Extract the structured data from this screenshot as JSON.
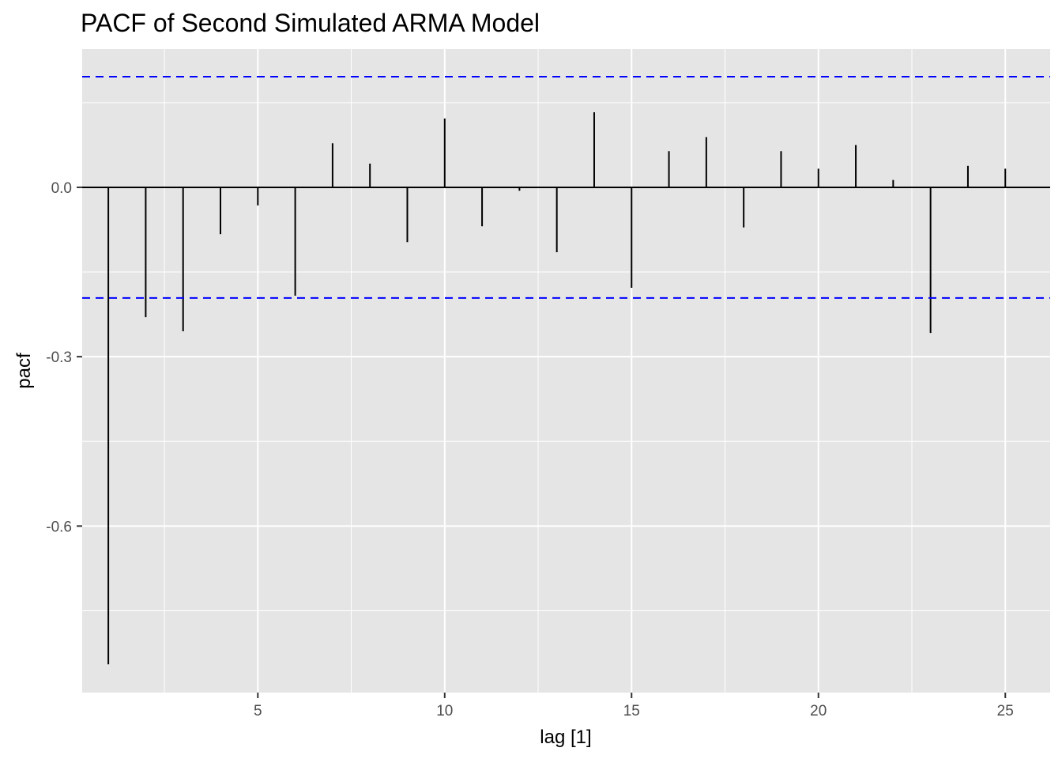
{
  "chart_data": {
    "type": "bar",
    "subtype": "pacf-stem",
    "title": "PACF of Second Simulated ARMA Model",
    "xlabel": "lag [1]",
    "ylabel": "pacf",
    "xlim": [
      0.3,
      26.2
    ],
    "ylim": [
      -0.895,
      0.245
    ],
    "x_ticks": [
      5,
      10,
      15,
      20,
      25
    ],
    "x_tick_labels": [
      "5",
      "10",
      "15",
      "20",
      "25"
    ],
    "y_ticks": [
      0.0,
      -0.3,
      -0.6
    ],
    "y_tick_labels": [
      "0.0",
      "-0.3",
      "-0.6"
    ],
    "grid": true,
    "confidence_bounds": [
      0.196,
      -0.196
    ],
    "lags": [
      1,
      2,
      3,
      4,
      5,
      6,
      7,
      8,
      9,
      10,
      11,
      12,
      13,
      14,
      15,
      16,
      17,
      18,
      19,
      20,
      21,
      22,
      23,
      24,
      25
    ],
    "values": [
      -0.845,
      -0.23,
      -0.255,
      -0.083,
      -0.032,
      -0.192,
      0.078,
      0.042,
      -0.097,
      0.122,
      -0.069,
      -0.006,
      -0.115,
      0.133,
      -0.178,
      0.064,
      0.089,
      -0.071,
      0.064,
      0.033,
      0.075,
      0.013,
      -0.258,
      0.038,
      0.033
    ]
  },
  "colors": {
    "panel": "#e5e5e5",
    "grid": "#ffffff",
    "stem": "#000000",
    "bound": "#0000ff"
  }
}
